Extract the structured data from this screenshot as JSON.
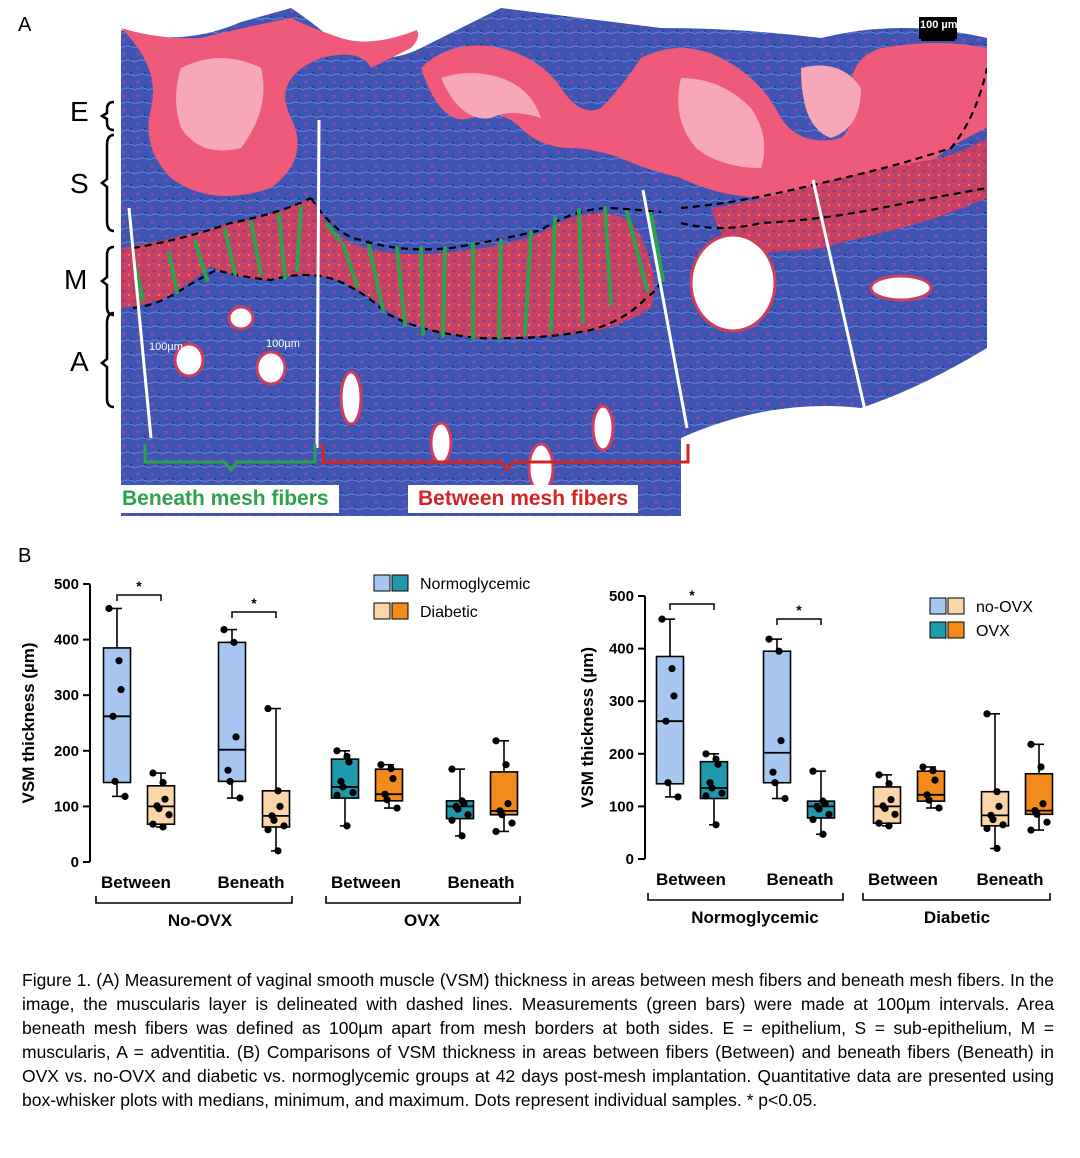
{
  "panel_a": {
    "label": "A",
    "layers": [
      "E",
      "S",
      "M",
      "A"
    ],
    "scale_bar": "100 µm",
    "interval_label_left": "100µm",
    "interval_label_right": "100µm",
    "region_beneath": "Beneath mesh fibers",
    "region_between": "Between mesh fibers",
    "colors": {
      "beneath": "#2ca34a",
      "between": "#d42424",
      "stroma": "#3b52b0",
      "epithelium": "#ef5a7a"
    }
  },
  "panel_b": {
    "label": "B"
  },
  "chart_data": [
    {
      "type": "box",
      "ylabel": "VSM thickness (µm)",
      "ylim": [
        0,
        500
      ],
      "yticks": [
        0,
        100,
        200,
        300,
        400,
        500
      ],
      "categories": [
        "Between",
        "Beneath",
        "Between",
        "Beneath"
      ],
      "groups": [
        "No-OVX",
        "OVX"
      ],
      "legend": {
        "position": "top-right",
        "entries": [
          "Normoglycemic",
          "Diabetic"
        ]
      },
      "significance": [
        "*",
        "*"
      ],
      "boxes": [
        {
          "category": "Between",
          "group": "No-OVX",
          "series": "Normoglycemic",
          "color": "#a7c7f2",
          "min": 118,
          "q1": 143,
          "median": 262,
          "q3": 385,
          "max": 456,
          "points": [
            456,
            362,
            310,
            262,
            145,
            118
          ]
        },
        {
          "category": "Between",
          "group": "No-OVX",
          "series": "Diabetic",
          "color": "#fcd5a8",
          "min": 63,
          "q1": 68,
          "median": 100,
          "q3": 137,
          "max": 160,
          "points": [
            160,
            143,
            113,
            101,
            96,
            85,
            68,
            63
          ]
        },
        {
          "category": "Beneath",
          "group": "No-OVX",
          "series": "Normoglycemic",
          "color": "#a7c7f2",
          "min": 115,
          "q1": 145,
          "median": 202,
          "q3": 395,
          "max": 418,
          "points": [
            418,
            395,
            225,
            165,
            145,
            115
          ]
        },
        {
          "category": "Beneath",
          "group": "No-OVX",
          "series": "Diabetic",
          "color": "#fcd5a8",
          "min": 20,
          "q1": 63,
          "median": 83,
          "q3": 128,
          "max": 276,
          "points": [
            276,
            128,
            100,
            83,
            75,
            65,
            58,
            20
          ]
        },
        {
          "category": "Between",
          "group": "OVX",
          "series": "Normoglycemic",
          "color": "#1f9aad",
          "min": 65,
          "q1": 115,
          "median": 135,
          "q3": 185,
          "max": 200,
          "points": [
            200,
            190,
            180,
            145,
            135,
            125,
            120,
            65
          ]
        },
        {
          "category": "Between",
          "group": "OVX",
          "series": "Diabetic",
          "color": "#f28a1c",
          "min": 97,
          "q1": 110,
          "median": 122,
          "q3": 167,
          "max": 175,
          "points": [
            175,
            168,
            150,
            122,
            112,
            97
          ]
        },
        {
          "category": "Beneath",
          "group": "OVX",
          "series": "Normoglycemic",
          "color": "#1f9aad",
          "min": 47,
          "q1": 78,
          "median": 100,
          "q3": 110,
          "max": 167,
          "points": [
            167,
            110,
            105,
            100,
            95,
            85,
            75,
            47
          ]
        },
        {
          "category": "Beneath",
          "group": "OVX",
          "series": "Diabetic",
          "color": "#f28a1c",
          "min": 55,
          "q1": 85,
          "median": 92,
          "q3": 162,
          "max": 218,
          "points": [
            218,
            175,
            105,
            92,
            85,
            70,
            55
          ]
        }
      ]
    },
    {
      "type": "box",
      "ylabel": "VSM thickness (µm)",
      "ylim": [
        0,
        500
      ],
      "yticks": [
        0,
        100,
        200,
        300,
        400,
        500
      ],
      "categories": [
        "Between",
        "Beneath",
        "Between",
        "Beneath"
      ],
      "groups": [
        "Normoglycemic",
        "Diabetic"
      ],
      "legend": {
        "position": "top-right",
        "entries": [
          "no-OVX",
          "OVX"
        ]
      },
      "significance": [
        "*",
        "*"
      ],
      "boxes": [
        {
          "category": "Between",
          "group": "Normoglycemic",
          "series": "no-OVX",
          "color": "#a7c7f2",
          "min": 118,
          "q1": 143,
          "median": 262,
          "q3": 385,
          "max": 456,
          "points": [
            456,
            362,
            310,
            262,
            145,
            118
          ]
        },
        {
          "category": "Between",
          "group": "Normoglycemic",
          "series": "OVX",
          "color": "#1f9aad",
          "min": 65,
          "q1": 115,
          "median": 135,
          "q3": 185,
          "max": 200,
          "points": [
            200,
            190,
            180,
            145,
            135,
            125,
            120,
            65
          ]
        },
        {
          "category": "Beneath",
          "group": "Normoglycemic",
          "series": "no-OVX",
          "color": "#a7c7f2",
          "min": 115,
          "q1": 145,
          "median": 202,
          "q3": 395,
          "max": 418,
          "points": [
            418,
            395,
            225,
            165,
            145,
            115
          ]
        },
        {
          "category": "Beneath",
          "group": "Normoglycemic",
          "series": "OVX",
          "color": "#1f9aad",
          "min": 47,
          "q1": 78,
          "median": 100,
          "q3": 110,
          "max": 167,
          "points": [
            167,
            110,
            105,
            100,
            95,
            85,
            75,
            47
          ]
        },
        {
          "category": "Between",
          "group": "Diabetic",
          "series": "no-OVX",
          "color": "#fcd5a8",
          "min": 63,
          "q1": 68,
          "median": 100,
          "q3": 137,
          "max": 160,
          "points": [
            160,
            143,
            113,
            101,
            96,
            85,
            68,
            63
          ]
        },
        {
          "category": "Between",
          "group": "Diabetic",
          "series": "OVX",
          "color": "#f28a1c",
          "min": 97,
          "q1": 110,
          "median": 122,
          "q3": 167,
          "max": 175,
          "points": [
            175,
            168,
            150,
            122,
            112,
            97
          ]
        },
        {
          "category": "Beneath",
          "group": "Diabetic",
          "series": "no-OVX",
          "color": "#fcd5a8",
          "min": 20,
          "q1": 63,
          "median": 83,
          "q3": 128,
          "max": 276,
          "points": [
            276,
            128,
            100,
            83,
            75,
            65,
            58,
            20
          ]
        },
        {
          "category": "Beneath",
          "group": "Diabetic",
          "series": "OVX",
          "color": "#f28a1c",
          "min": 55,
          "q1": 85,
          "median": 92,
          "q3": 162,
          "max": 218,
          "points": [
            218,
            175,
            105,
            92,
            85,
            70,
            55
          ]
        }
      ]
    }
  ],
  "caption": "Figure 1. (A) Measurement of vaginal smooth muscle (VSM) thickness in areas between mesh fibers and beneath mesh fibers. In the image, the muscularis layer is delineated with dashed lines. Measurements (green bars) were made at 100µm intervals. Area beneath mesh fibers was defined as 100µm apart from mesh borders at both sides. E = epithelium, S = sub-epithelium, M = muscularis, A = adventitia. (B) Comparisons of VSM thickness in areas between fibers (Between) and beneath fibers (Beneath) in OVX vs. no-OVX and diabetic vs. normoglycemic groups at 42 days post-mesh implantation. Quantitative data are presented using box-whisker plots with medians, minimum, and maximum. Dots represent individual samples. * p<0.05."
}
